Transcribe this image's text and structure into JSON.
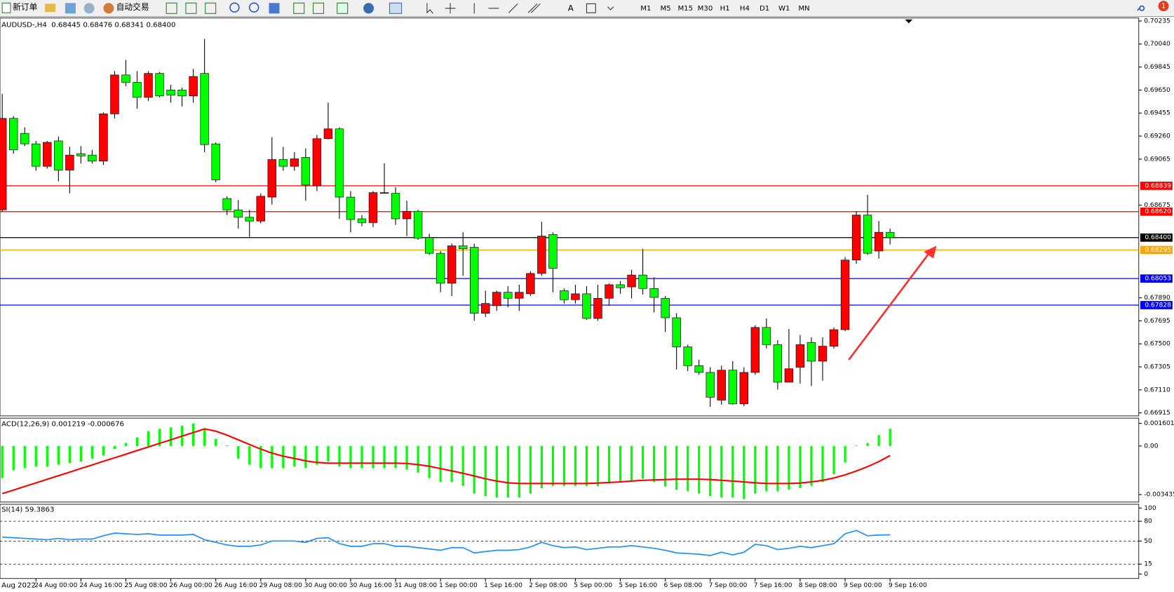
{
  "toolbar": {
    "new_order": "新订单",
    "auto_trading": "自动交易",
    "timeframes": [
      "M1",
      "M5",
      "M15",
      "M30",
      "H1",
      "H4",
      "D1",
      "W1",
      "MN"
    ],
    "notification_count": "1"
  },
  "chart_data": [
    {
      "type": "candlestick",
      "title": "AUDUSD-,H4",
      "ohlc_label": "0.68445 0.68476 0.68341 0.68400",
      "x_start_label": "Aug 2022",
      "categories": [
        null,
        null,
        null,
        "24 Aug 00:00",
        null,
        null,
        null,
        "24 Aug 16:00",
        null,
        null,
        null,
        "25 Aug 08:00",
        null,
        null,
        null,
        "26 Aug 00:00",
        null,
        null,
        null,
        "26 Aug 16:00",
        null,
        null,
        null,
        "29 Aug 08:00",
        null,
        null,
        null,
        "30 Aug 00:00",
        null,
        null,
        null,
        "30 Aug 16:00",
        null,
        null,
        null,
        "31 Aug 08:00",
        null,
        null,
        null,
        "1 Sep 00:00",
        null,
        null,
        null,
        "1 Sep 16:00",
        null,
        null,
        null,
        "2 Sep 08:00",
        null,
        null,
        null,
        "5 Sep 00:00",
        null,
        null,
        null,
        "5 Sep 16:00",
        null,
        null,
        null,
        "6 Sep 08:00",
        null,
        null,
        null,
        "7 Sep 00:00",
        null,
        null,
        null,
        "7 Sep 16:00",
        null,
        null,
        null,
        "8 Sep 08:00",
        null,
        null,
        null,
        "9 Sep 00:00",
        null,
        null,
        null,
        "9 Sep 16:00"
      ],
      "open": [
        0.68635,
        0.6941,
        0.69283,
        0.69194,
        0.69004,
        0.69219,
        0.68972,
        0.69111,
        0.69099,
        0.69048,
        0.69448,
        0.69778,
        0.69715,
        0.69588,
        0.69791,
        0.69651,
        0.69651,
        0.696,
        0.69791,
        0.69194,
        0.68731,
        0.68635,
        0.68572,
        0.6854,
        0.68743,
        0.69061,
        0.69004,
        0.6908,
        0.68838,
        0.69238,
        0.69321,
        0.68743,
        0.68559,
        0.68527,
        0.68775,
        0.68775,
        0.68559,
        0.68623,
        0.684,
        0.68267,
        0.68013,
        0.6833,
        0.68318,
        0.67759,
        0.67823,
        0.67937,
        0.67886,
        0.67924,
        0.68096,
        0.68426,
        0.6795,
        0.67874,
        0.67924,
        0.67715,
        0.67886,
        0.68001,
        0.67982,
        0.68083,
        0.67969,
        0.67886,
        0.67721,
        0.67474,
        0.67315,
        0.67258,
        0.67023,
        0.67277,
        0.66991,
        0.67258,
        0.67639,
        0.67493,
        0.67175,
        0.67302,
        0.67512,
        0.67353,
        0.6748,
        0.6762,
        0.6821,
        0.68591,
        0.68286,
        0.68445
      ],
      "high": [
        0.69619,
        0.69429,
        0.69334,
        0.69219,
        0.69219,
        0.69257,
        0.69169,
        0.69175,
        0.69143,
        0.69461,
        0.6981,
        0.69905,
        0.6981,
        0.6981,
        0.69803,
        0.69695,
        0.6967,
        0.69829,
        0.70083,
        0.69207,
        0.6875,
        0.68718,
        0.68635,
        0.68775,
        0.69251,
        0.69169,
        0.69124,
        0.69156,
        0.6927,
        0.69543,
        0.69334,
        0.68794,
        0.68591,
        0.68794,
        0.69029,
        0.68826,
        0.68712,
        0.68635,
        0.68432,
        0.68286,
        0.68349,
        0.68445,
        0.68349,
        0.6795,
        0.6795,
        0.67988,
        0.68001,
        0.68115,
        0.68534,
        0.68445,
        0.67969,
        0.68001,
        0.67988,
        0.68001,
        0.68013,
        0.68032,
        0.68127,
        0.68305,
        0.68064,
        0.67905,
        0.67759,
        0.67493,
        0.67366,
        0.67302,
        0.67315,
        0.67353,
        0.67302,
        0.67658,
        0.67715,
        0.67531,
        0.67626,
        0.67575,
        0.67556,
        0.67556,
        0.67639,
        0.68235,
        0.68623,
        0.68762,
        0.6854,
        0.68476
      ],
      "low": [
        0.6862,
        0.69111,
        0.69175,
        0.68966,
        0.68985,
        0.68877,
        0.68775,
        0.69029,
        0.69029,
        0.69016,
        0.6941,
        0.69683,
        0.69492,
        0.69556,
        0.69588,
        0.69543,
        0.69511,
        0.69543,
        0.69124,
        0.6887,
        0.68591,
        0.68477,
        0.68407,
        0.68521,
        0.6868,
        0.68966,
        0.68966,
        0.68712,
        0.68794,
        0.69232,
        0.68559,
        0.68445,
        0.68496,
        0.68489,
        0.68775,
        0.68508,
        0.68413,
        0.68381,
        0.68254,
        0.67937,
        0.67905,
        0.68077,
        0.67696,
        0.67728,
        0.67779,
        0.6781,
        0.67779,
        0.67905,
        0.68077,
        0.67937,
        0.67842,
        0.67842,
        0.67702,
        0.67696,
        0.67823,
        0.67924,
        0.67886,
        0.67918,
        0.67766,
        0.67601,
        0.67283,
        0.6727,
        0.67239,
        0.66966,
        0.66985,
        0.66985,
        0.66972,
        0.67239,
        0.67461,
        0.67112,
        0.67175,
        0.67163,
        0.67143,
        0.67188,
        0.67461,
        0.67607,
        0.68178,
        0.68254,
        0.68222,
        0.68341
      ],
      "close": [
        0.6941,
        0.69143,
        0.69194,
        0.69004,
        0.69207,
        0.68972,
        0.69099,
        0.69092,
        0.69048,
        0.69448,
        0.69778,
        0.69715,
        0.69588,
        0.69791,
        0.696,
        0.69607,
        0.696,
        0.69765,
        0.69188,
        0.68889,
        0.68635,
        0.68572,
        0.6854,
        0.6875,
        0.69061,
        0.69004,
        0.69067,
        0.68845,
        0.69238,
        0.69321,
        0.68743,
        0.68553,
        0.68527,
        0.68781,
        0.68781,
        0.68559,
        0.68623,
        0.68394,
        0.68267,
        0.68013,
        0.6833,
        0.68305,
        0.67759,
        0.67842,
        0.67937,
        0.67886,
        0.67937,
        0.68096,
        0.68413,
        0.6814,
        0.67874,
        0.67924,
        0.67715,
        0.67886,
        0.68001,
        0.67975,
        0.68083,
        0.67969,
        0.67893,
        0.67721,
        0.67474,
        0.67315,
        0.67258,
        0.67048,
        0.67277,
        0.66991,
        0.67258,
        0.67639,
        0.67493,
        0.67175,
        0.67289,
        0.67493,
        0.67353,
        0.6748,
        0.6762,
        0.6821,
        0.68591,
        0.68267,
        0.68445,
        0.684
      ],
      "up_color": "#ff0000",
      "down_color": "#00ff00",
      "ylim": [
        0.66915,
        0.70235
      ],
      "yticks": [
        0.70235,
        {
          "value": 0.7004,
          "label": "0.70040"
        },
        0.69845,
        {
          "value": 0.6965,
          "label": "0.69650"
        },
        0.69455,
        {
          "value": 0.6926,
          "label": "0.69260"
        },
        0.69065,
        0.68675,
        {
          "value": 0.6789,
          "label": "0.67890"
        },
        0.67695,
        {
          "value": 0.675,
          "label": "0.67500"
        },
        0.67305,
        {
          "value": 0.6711,
          "label": "0.67110"
        },
        0.66915
      ],
      "hlines": [
        {
          "value": 0.68839,
          "label": "0.68839",
          "color": "#ff0000"
        },
        {
          "value": 0.6862,
          "label": "0.68620",
          "color": "#ff0000"
        },
        {
          "value": 0.684,
          "label": "0.68400",
          "color": "#000000"
        },
        {
          "value": 0.68295,
          "label": "0.68295",
          "color": "#ffa500"
        },
        {
          "value": 0.68053,
          "label": "0.68053",
          "color": "#0000ff"
        },
        {
          "value": 0.67828,
          "label": "0.67828",
          "color": "#0000ff"
        }
      ]
    },
    {
      "type": "macd",
      "title": "ACD(12,26,9) 0.001219 -0.000676",
      "histogram": {
        "color": "#00ff00",
        "values": [
          -0.00226,
          -0.00171,
          -0.00155,
          -0.00144,
          -0.00144,
          -0.00132,
          -0.00121,
          -0.0011,
          -0.00088,
          -0.00066,
          -0.00022,
          0.00022,
          0.00061,
          0.00105,
          0.00121,
          0.00132,
          0.00144,
          0.0016,
          0.00121,
          0.0005,
          0,
          -0.00088,
          -0.00132,
          -0.00155,
          -0.00155,
          -0.00155,
          -0.00144,
          -0.00155,
          -0.00132,
          -0.0011,
          -0.00144,
          -0.00155,
          -0.00155,
          -0.00155,
          -0.00155,
          -0.00155,
          -0.00166,
          -0.00188,
          -0.00226,
          -0.00254,
          -0.00254,
          -0.00282,
          -0.00337,
          -0.00353,
          -0.00364,
          -0.00364,
          -0.00364,
          -0.00337,
          -0.00298,
          -0.00282,
          -0.00282,
          -0.00282,
          -0.00282,
          -0.00282,
          -0.00265,
          -0.00254,
          -0.00243,
          -0.00232,
          -0.00254,
          -0.00287,
          -0.00309,
          -0.0032,
          -0.00337,
          -0.00353,
          -0.00364,
          -0.00364,
          -0.00375,
          -0.00337,
          -0.0032,
          -0.0032,
          -0.00309,
          -0.00298,
          -0.00282,
          -0.00254,
          -0.00199,
          -0.00116,
          0,
          0.00022,
          0.00077,
          0.001219
        ]
      },
      "signal": {
        "color": "#ff0000",
        "values": [
          -0.00337,
          -0.00312,
          -0.00286,
          -0.00261,
          -0.00235,
          -0.0021,
          -0.00185,
          -0.00159,
          -0.00134,
          -0.00108,
          -0.00083,
          -0.00058,
          -0.00032,
          -7e-05,
          0.00019,
          0.00044,
          0.0007,
          0.00095,
          0.00121,
          0.00105,
          0.00077,
          0.00044,
          0.00011,
          -0.00022,
          -0.0005,
          -0.00072,
          -0.00088,
          -0.00105,
          -0.00116,
          -0.00121,
          -0.00121,
          -0.00121,
          -0.00121,
          -0.00121,
          -0.00121,
          -0.00121,
          -0.00124,
          -0.00132,
          -0.00143,
          -0.0016,
          -0.00176,
          -0.00193,
          -0.00212,
          -0.00232,
          -0.00248,
          -0.0026,
          -0.00265,
          -0.00265,
          -0.00265,
          -0.00265,
          -0.00265,
          -0.00265,
          -0.00265,
          -0.00262,
          -0.00258,
          -0.00254,
          -0.00248,
          -0.00243,
          -0.0024,
          -0.00237,
          -0.00235,
          -0.00235,
          -0.00235,
          -0.00237,
          -0.00243,
          -0.00248,
          -0.00254,
          -0.0026,
          -0.00265,
          -0.00265,
          -0.00265,
          -0.00262,
          -0.00254,
          -0.00243,
          -0.00226,
          -0.00204,
          -0.00177,
          -0.00146,
          -0.0011,
          -0.000676
        ]
      },
      "ylim": [
        -0.003435,
        0.001601
      ],
      "yticks": [
        0.001601,
        {
          "value": 0,
          "label": "0.00"
        },
        -0.003435
      ]
    },
    {
      "type": "line",
      "title": "SI(14) 59.3863",
      "color": "#1e90ff",
      "values": [
        56,
        55,
        54,
        53,
        52,
        54,
        52,
        53,
        53,
        58,
        62,
        61,
        60,
        61,
        59,
        59,
        59,
        60,
        52,
        48,
        44,
        42,
        42,
        44,
        50,
        50,
        50,
        48,
        54,
        55,
        46,
        42,
        42,
        46,
        46,
        42,
        42,
        40,
        38,
        36,
        40,
        40,
        32,
        34,
        36,
        36,
        37,
        41,
        48,
        43,
        40,
        41,
        37,
        39,
        41,
        41,
        43,
        41,
        39,
        36,
        32,
        31,
        30,
        28,
        33,
        29,
        33,
        45,
        43,
        37,
        39,
        42,
        40,
        43,
        46,
        61,
        66,
        58,
        59,
        59.3863
      ],
      "ylim": [
        0,
        100
      ],
      "yticks": [
        100,
        80,
        50,
        15,
        0
      ],
      "levels": [
        80,
        50,
        15
      ]
    }
  ]
}
